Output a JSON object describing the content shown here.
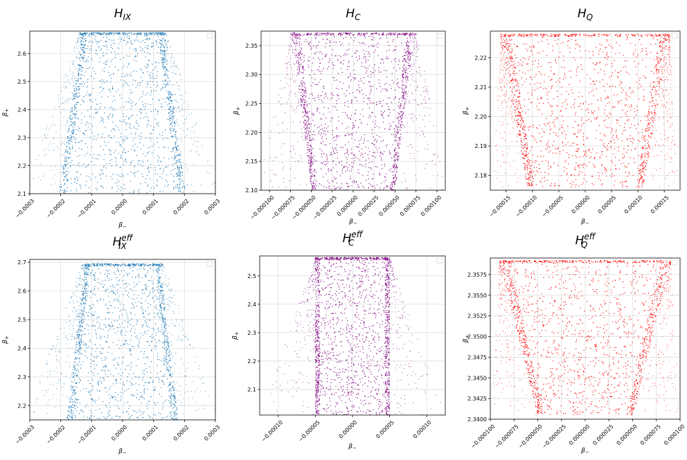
{
  "chart_data": [
    {
      "type": "scatter",
      "title": "H",
      "title_sub": "IX",
      "title_sup": "",
      "xlabel": "β",
      "xlabel_sub": "−",
      "ylabel": "β",
      "ylabel_sub": "+",
      "color": "#1f77b4",
      "xlim": [
        -0.0003,
        0.0003
      ],
      "ylim": [
        2.1,
        2.68
      ],
      "xticks": [
        -0.0003,
        -0.0002,
        -0.0001,
        0.0,
        0.0001,
        0.0002,
        0.0003
      ],
      "xtick_labels": [
        "−0.0003",
        "−0.0002",
        "−0.0001",
        "0.0000",
        "0.0001",
        "0.0002",
        "0.0003"
      ],
      "yticks": [
        2.1,
        2.2,
        2.3,
        2.4,
        2.5,
        2.6
      ],
      "ytick_labels": [
        "2.1",
        "2.2",
        "2.3",
        "2.4",
        "2.5",
        "2.6"
      ],
      "grid": true,
      "legend": "top-right (empty)",
      "shape": {
        "y_top": 2.675,
        "y_bottom": 2.1,
        "core_half_top": 0.00013,
        "core_half_bottom": 0.000205,
        "halo_half_top": 0.00014,
        "halo_half_bottom": 0.00032
      }
    },
    {
      "type": "scatter",
      "title": "H",
      "title_sub": "C",
      "title_sup": "",
      "xlabel": "β",
      "xlabel_sub": "−",
      "ylabel": "β",
      "ylabel_sub": "+",
      "color": "#800080",
      "xlim": [
        -0.00011,
        0.00011
      ],
      "ylim": [
        2.1,
        2.375
      ],
      "xticks": [
        -0.0001,
        -7.5e-05,
        -5e-05,
        -2.5e-05,
        0.0,
        2.5e-05,
        5e-05,
        7.5e-05,
        0.0001
      ],
      "xtick_labels": [
        "−0.000100",
        "−0.000075",
        "−0.000050",
        "−0.000025",
        "0.000000",
        "0.000025",
        "0.000050",
        "0.000075",
        "0.000100"
      ],
      "yticks": [
        2.1,
        2.15,
        2.2,
        2.25,
        2.3,
        2.35
      ],
      "ytick_labels": [
        "2.10",
        "2.15",
        "2.20",
        "2.25",
        "2.30",
        "2.35"
      ],
      "grid": true,
      "legend": "top-right (empty)",
      "shape": {
        "y_top": 2.372,
        "y_bottom": 2.1,
        "core_half_top": 7.2e-05,
        "core_half_bottom": 5e-05,
        "halo_half_top": 7.5e-05,
        "halo_half_bottom": 0.000115
      }
    },
    {
      "type": "scatter",
      "title": "H",
      "title_sub": "Q",
      "title_sup": "",
      "xlabel": "β",
      "xlabel_sub": "−",
      "ylabel": "β",
      "ylabel_sub": "+",
      "color": "#ff0000",
      "xlim": [
        -0.00018,
        0.00018
      ],
      "ylim": [
        2.175,
        2.229
      ],
      "xticks": [
        -0.00015,
        -0.0001,
        -5e-05,
        0.0,
        5e-05,
        0.0001,
        0.00015
      ],
      "xtick_labels": [
        "−0.00015",
        "−0.00010",
        "−0.00005",
        "0.00000",
        "0.00005",
        "0.00010",
        "0.00015"
      ],
      "yticks": [
        2.18,
        2.19,
        2.2,
        2.21,
        2.22
      ],
      "ytick_labels": [
        "2.18",
        "2.19",
        "2.20",
        "2.21",
        "2.22"
      ],
      "grid": true,
      "legend": "top-right (empty)",
      "shape": {
        "y_top": 2.228,
        "y_bottom": 2.176,
        "core_half_top": 0.00016,
        "core_half_bottom": 0.00011,
        "halo_half_top": 0.00016,
        "halo_half_bottom": 0.000175
      }
    },
    {
      "type": "scatter",
      "title": "H",
      "title_sub": "IX",
      "title_sup": "eff",
      "xlabel": "β",
      "xlabel_sub": "−",
      "ylabel": "β",
      "ylabel_sub": "+",
      "color": "#1f77b4",
      "xlim": [
        -0.0003,
        0.0003
      ],
      "ylim": [
        2.15,
        2.71
      ],
      "xticks": [
        -0.0003,
        -0.0002,
        -0.0001,
        0.0,
        0.0001,
        0.0002,
        0.0003
      ],
      "xtick_labels": [
        "−0.0003",
        "−0.0002",
        "−0.0001",
        "0.0000",
        "0.0001",
        "0.0002",
        "0.0003"
      ],
      "yticks": [
        2.2,
        2.3,
        2.4,
        2.5,
        2.6,
        2.7
      ],
      "ytick_labels": [
        "2.2",
        "2.3",
        "2.4",
        "2.5",
        "2.6",
        "2.7"
      ],
      "grid": true,
      "legend": "top-right (empty)",
      "shape": {
        "y_top": 2.695,
        "y_bottom": 2.15,
        "core_half_top": 0.00012,
        "core_half_bottom": 0.00018,
        "halo_half_top": 0.00013,
        "halo_half_bottom": 0.00032
      }
    },
    {
      "type": "scatter",
      "title": "H",
      "title_sub": "C",
      "title_sup": "eff",
      "xlabel": "β",
      "xlabel_sub": "−",
      "ylabel": "β",
      "ylabel_sub": "+",
      "color": "#800080",
      "xlim": [
        -0.000125,
        0.000125
      ],
      "ylim": [
        2.01,
        2.57
      ],
      "xticks": [
        -0.0001,
        -5e-05,
        0.0,
        5e-05,
        0.0001
      ],
      "xtick_labels": [
        "−0.00010",
        "−0.00005",
        "0.00000",
        "0.00005",
        "0.00010"
      ],
      "yticks": [
        2.1,
        2.2,
        2.3,
        2.4,
        2.5
      ],
      "ytick_labels": [
        "2.1",
        "2.2",
        "2.3",
        "2.4",
        "2.5"
      ],
      "grid": true,
      "legend": "top-right (empty)",
      "shape": {
        "y_top": 2.565,
        "y_bottom": 2.01,
        "core_half_top": 5e-05,
        "core_half_bottom": 5e-05,
        "halo_half_top": 5e-05,
        "halo_half_bottom": 0.000125
      }
    },
    {
      "type": "scatter",
      "title": "H",
      "title_sub": "Q",
      "title_sup": "eff",
      "xlabel": "β",
      "xlabel_sub": "−",
      "ylabel": "β",
      "ylabel_sub": "+",
      "color": "#ff0000",
      "xlim": [
        -0.0001,
        0.0001
      ],
      "ylim": [
        2.34,
        2.3595
      ],
      "xticks": [
        -0.0001,
        -7.5e-05,
        -5e-05,
        -2.5e-05,
        0.0,
        2.5e-05,
        5e-05,
        7.5e-05,
        0.0001
      ],
      "xtick_labels": [
        "−0.000100",
        "−0.000075",
        "−0.000050",
        "−0.000025",
        "0.000000",
        "0.000025",
        "0.000050",
        "0.000075",
        "0.000100"
      ],
      "yticks": [
        2.34,
        2.3425,
        2.345,
        2.3475,
        2.35,
        2.3525,
        2.355,
        2.3575
      ],
      "ytick_labels": [
        "2.3400",
        "2.3425",
        "2.3450",
        "2.3475",
        "2.3500",
        "2.3525",
        "2.3550",
        "2.3575"
      ],
      "grid": true,
      "legend": "top-right (empty)",
      "shape": {
        "y_top": 2.3592,
        "y_bottom": 2.3405,
        "core_half_top": 9e-05,
        "core_half_bottom": 5e-05,
        "halo_half_top": 9e-05,
        "halo_half_bottom": 0.0001
      }
    }
  ]
}
